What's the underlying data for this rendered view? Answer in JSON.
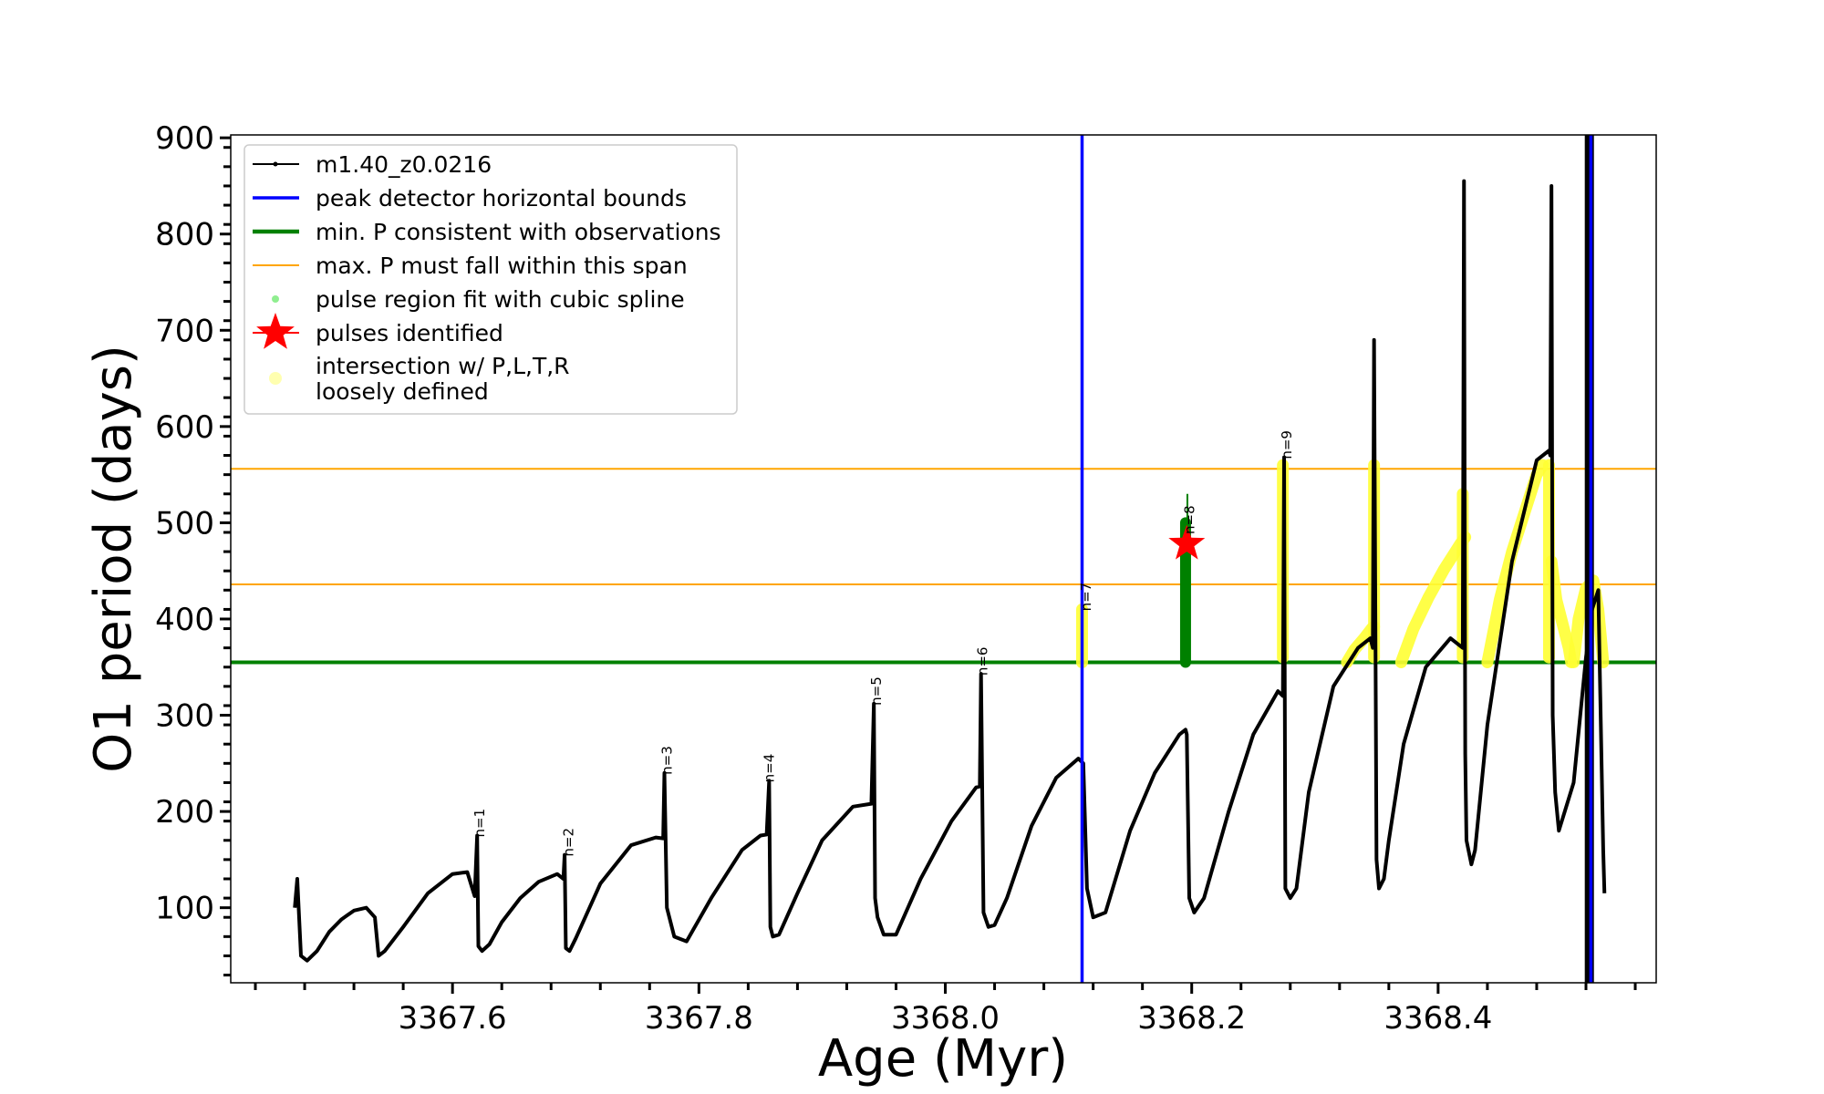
{
  "chart_data": {
    "type": "line",
    "xlabel": "Age (Myr)",
    "ylabel": "O1 period (days)",
    "xlim": [
      3367.42,
      3368.577
    ],
    "ylim": [
      22,
      903
    ],
    "x_ticks": [
      3367.6,
      3367.8,
      3368.0,
      3368.2,
      3368.4
    ],
    "x_tick_labels": [
      "3367.6",
      "3367.8",
      "3368.0",
      "3368.2",
      "3368.4"
    ],
    "y_ticks": [
      100,
      200,
      300,
      400,
      500,
      600,
      700,
      800,
      900
    ],
    "y_tick_labels": [
      "100",
      "200",
      "300",
      "400",
      "500",
      "600",
      "700",
      "800",
      "900"
    ],
    "grid": false,
    "legend_position": "top-left",
    "legend": [
      {
        "label": "m1.40_z0.0216",
        "kind": "line-dot",
        "color": "#000000"
      },
      {
        "label": "peak detector horizontal bounds",
        "kind": "line",
        "color": "#0000ff"
      },
      {
        "label": "min. P consistent with observations",
        "kind": "thick-line",
        "color": "#008000"
      },
      {
        "label": "max. P must fall within this span",
        "kind": "thin-line",
        "color": "#ffa500"
      },
      {
        "label": "pulse region fit with cubic spline",
        "kind": "dot",
        "color": "#90ee90"
      },
      {
        "label": "pulses identified",
        "kind": "star",
        "color": "#ff0000"
      },
      {
        "label": "intersection w/ P,L,T,R",
        "label2": "loosely defined",
        "kind": "circle",
        "color": "#ffffb0"
      }
    ],
    "pulse_labels": [
      {
        "text": "n=1",
        "x": 3367.62,
        "y": 175
      },
      {
        "text": "n=2",
        "x": 3367.692,
        "y": 155
      },
      {
        "text": "n=3",
        "x": 3367.772,
        "y": 240
      },
      {
        "text": "n=4",
        "x": 3367.855,
        "y": 232
      },
      {
        "text": "n=5",
        "x": 3367.942,
        "y": 312
      },
      {
        "text": "n=6",
        "x": 3368.028,
        "y": 343
      },
      {
        "text": "n=7",
        "x": 3368.112,
        "y": 410
      },
      {
        "text": "n=8",
        "x": 3368.196,
        "y": 490
      },
      {
        "text": "n=9",
        "x": 3368.275,
        "y": 568
      }
    ],
    "reference_lines": {
      "vertical_blue": [
        3368.111,
        3368.524
      ],
      "horizontal_green": 355,
      "horizontal_orange": [
        436,
        556
      ]
    },
    "pulse_identified": {
      "x": 3368.196,
      "y": 478
    },
    "series": [
      {
        "name": "m1.40_z0.0216",
        "x": [
          3367.472,
          3367.474,
          3367.477,
          3367.482,
          3367.49,
          3367.5,
          3367.51,
          3367.52,
          3367.53,
          3367.537,
          3367.54,
          3367.545,
          3367.56,
          3367.58,
          3367.6,
          3367.612,
          3367.618,
          3367.62,
          3367.621,
          3367.624,
          3367.63,
          3367.64,
          3367.655,
          3367.67,
          3367.685,
          3367.69,
          3367.691,
          3367.692,
          3367.695,
          3367.7,
          3367.72,
          3367.745,
          3367.765,
          3367.771,
          3367.772,
          3367.774,
          3367.78,
          3367.79,
          3367.81,
          3367.835,
          3367.85,
          3367.855,
          3367.857,
          3367.858,
          3367.86,
          3367.865,
          3367.88,
          3367.9,
          3367.925,
          3367.94,
          3367.942,
          3367.943,
          3367.945,
          3367.95,
          3367.96,
          3367.98,
          3368.005,
          3368.025,
          3368.028,
          3368.029,
          3368.031,
          3368.035,
          3368.04,
          3368.05,
          3368.07,
          3368.09,
          3368.108,
          3368.112,
          3368.115,
          3368.12,
          3368.13,
          3368.15,
          3368.17,
          3368.19,
          3368.195,
          3368.196,
          3368.198,
          3368.202,
          3368.21,
          3368.23,
          3368.25,
          3368.27,
          3368.274,
          3368.275,
          3368.276,
          3368.28,
          3368.285,
          3368.295,
          3368.315,
          3368.335,
          3368.345,
          3368.347,
          3368.348,
          3368.35,
          3368.352,
          3368.356,
          3368.36,
          3368.372,
          3368.39,
          3368.41,
          3368.42,
          3368.421,
          3368.422,
          3368.423,
          3368.427,
          3368.43,
          3368.44,
          3368.46,
          3368.48,
          3368.49,
          3368.491,
          3368.492,
          3368.493,
          3368.495,
          3368.498,
          3368.51,
          3368.52,
          3368.525,
          3368.53,
          3368.534,
          3368.535
        ],
        "y": [
          100,
          130,
          50,
          45,
          55,
          75,
          88,
          97,
          100,
          90,
          50,
          55,
          80,
          115,
          135,
          137,
          112,
          175,
          60,
          55,
          62,
          85,
          110,
          127,
          135,
          130,
          155,
          58,
          55,
          68,
          125,
          165,
          173,
          172,
          240,
          100,
          70,
          65,
          110,
          160,
          175,
          176,
          232,
          80,
          70,
          72,
          115,
          170,
          205,
          208,
          312,
          110,
          90,
          72,
          72,
          130,
          190,
          225,
          226,
          343,
          95,
          80,
          82,
          110,
          185,
          235,
          255,
          250,
          120,
          90,
          95,
          180,
          240,
          280,
          285,
          280,
          110,
          95,
          110,
          200,
          280,
          325,
          320,
          568,
          120,
          110,
          120,
          220,
          330,
          370,
          380,
          370,
          690,
          150,
          120,
          130,
          170,
          270,
          350,
          380,
          370,
          855,
          260,
          170,
          145,
          160,
          290,
          460,
          565,
          575,
          570,
          850,
          300,
          220,
          180,
          230,
          360,
          410,
          430,
          160,
          115
        ]
      }
    ],
    "spline_regions": [
      {
        "x": [
          3368.111,
          3368.111
        ],
        "y": [
          355,
          410
        ]
      },
      {
        "x": [
          3368.274,
          3368.274
        ],
        "y": [
          360,
          560
        ]
      },
      {
        "x": [
          3368.348,
          3368.348
        ],
        "y": [
          360,
          560
        ]
      },
      {
        "x": [
          3368.42,
          3368.42
        ],
        "y": [
          360,
          530
        ]
      },
      {
        "x": [
          3368.49,
          3368.49
        ],
        "y": [
          360,
          560
        ]
      },
      {
        "x": [
          3368.326,
          3368.332,
          3368.34,
          3368.346,
          3368.348
        ],
        "y": [
          355,
          368,
          380,
          390,
          392
        ]
      },
      {
        "x": [
          3368.37,
          3368.38,
          3368.392,
          3368.405,
          3368.418,
          3368.422
        ],
        "y": [
          355,
          390,
          422,
          452,
          478,
          485
        ]
      },
      {
        "x": [
          3368.44,
          3368.45,
          3368.46,
          3368.47,
          3368.48,
          3368.485
        ],
        "y": [
          355,
          420,
          470,
          510,
          550,
          560
        ]
      },
      {
        "x": [
          3368.492,
          3368.496,
          3368.502,
          3368.506,
          3368.508
        ],
        "y": [
          460,
          420,
          390,
          370,
          355
        ]
      },
      {
        "x": [
          3368.51,
          3368.514,
          3368.52,
          3368.526,
          3368.53,
          3368.534
        ],
        "y": [
          355,
          400,
          432,
          440,
          410,
          355
        ]
      }
    ],
    "green_pulse_region": {
      "x": [
        3368.195,
        3368.195
      ],
      "y": [
        355,
        500
      ]
    },
    "black_vertical_band": {
      "x": 3368.522,
      "y": [
        22,
        903
      ]
    }
  }
}
